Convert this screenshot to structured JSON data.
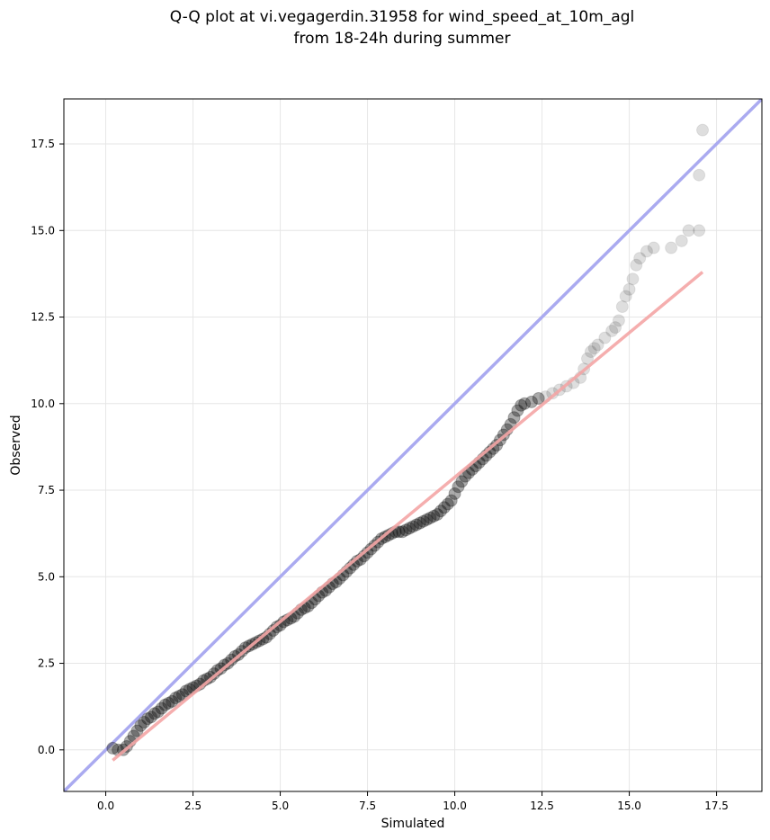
{
  "chart_data": {
    "type": "scatter",
    "title_line1": "Q-Q plot at vi.vegagerdin.31958 for wind_speed_at_10m_agl",
    "title_line2": "from 18-24h during summer",
    "xlabel": "Simulated",
    "ylabel": "Observed",
    "xlim": [
      -1.2,
      18.8
    ],
    "ylim": [
      -1.2,
      18.8
    ],
    "xticks": [
      "0.0",
      "2.5",
      "5.0",
      "7.5",
      "10.0",
      "12.5",
      "15.0",
      "17.5"
    ],
    "yticks": [
      "0.0",
      "2.5",
      "5.0",
      "7.5",
      "10.0",
      "12.5",
      "15.0",
      "17.5"
    ],
    "grid": true,
    "colors": {
      "identity_line": "#aaaaf0",
      "fit_line": "#f4a6a6",
      "points": "#000000",
      "fit_line_dark": "#8b1a1a"
    },
    "series": [
      {
        "kind": "identity-line",
        "x": [
          -1.2,
          18.8
        ],
        "y": [
          -1.2,
          18.8
        ]
      },
      {
        "kind": "fit-line",
        "x": [
          0.2,
          17.1
        ],
        "y": [
          -0.3,
          13.8
        ]
      },
      {
        "kind": "quantile-points",
        "points": [
          [
            0.2,
            0.05
          ],
          [
            0.35,
            0.0
          ],
          [
            0.5,
            0.0
          ],
          [
            0.6,
            0.1
          ],
          [
            0.7,
            0.25
          ],
          [
            0.8,
            0.4
          ],
          [
            0.9,
            0.55
          ],
          [
            1.0,
            0.7
          ],
          [
            1.1,
            0.8
          ],
          [
            1.2,
            0.9
          ],
          [
            1.3,
            0.95
          ],
          [
            1.4,
            1.05
          ],
          [
            1.5,
            1.1
          ],
          [
            1.6,
            1.2
          ],
          [
            1.7,
            1.3
          ],
          [
            1.8,
            1.35
          ],
          [
            1.9,
            1.4
          ],
          [
            2.0,
            1.5
          ],
          [
            2.1,
            1.55
          ],
          [
            2.2,
            1.6
          ],
          [
            2.3,
            1.7
          ],
          [
            2.4,
            1.75
          ],
          [
            2.5,
            1.8
          ],
          [
            2.6,
            1.85
          ],
          [
            2.7,
            1.9
          ],
          [
            2.8,
            2.0
          ],
          [
            2.9,
            2.05
          ],
          [
            3.0,
            2.1
          ],
          [
            3.1,
            2.2
          ],
          [
            3.2,
            2.3
          ],
          [
            3.3,
            2.35
          ],
          [
            3.4,
            2.45
          ],
          [
            3.5,
            2.5
          ],
          [
            3.6,
            2.6
          ],
          [
            3.7,
            2.7
          ],
          [
            3.8,
            2.75
          ],
          [
            3.9,
            2.85
          ],
          [
            4.0,
            2.95
          ],
          [
            4.1,
            3.0
          ],
          [
            4.2,
            3.05
          ],
          [
            4.3,
            3.1
          ],
          [
            4.4,
            3.15
          ],
          [
            4.5,
            3.2
          ],
          [
            4.6,
            3.25
          ],
          [
            4.7,
            3.35
          ],
          [
            4.8,
            3.45
          ],
          [
            4.9,
            3.55
          ],
          [
            5.0,
            3.6
          ],
          [
            5.1,
            3.7
          ],
          [
            5.2,
            3.75
          ],
          [
            5.3,
            3.8
          ],
          [
            5.4,
            3.85
          ],
          [
            5.5,
            3.95
          ],
          [
            5.6,
            4.05
          ],
          [
            5.7,
            4.1
          ],
          [
            5.8,
            4.15
          ],
          [
            5.9,
            4.25
          ],
          [
            6.0,
            4.35
          ],
          [
            6.1,
            4.45
          ],
          [
            6.2,
            4.55
          ],
          [
            6.3,
            4.6
          ],
          [
            6.4,
            4.7
          ],
          [
            6.5,
            4.8
          ],
          [
            6.6,
            4.85
          ],
          [
            6.7,
            4.95
          ],
          [
            6.8,
            5.05
          ],
          [
            6.9,
            5.15
          ],
          [
            7.0,
            5.25
          ],
          [
            7.1,
            5.35
          ],
          [
            7.2,
            5.45
          ],
          [
            7.3,
            5.5
          ],
          [
            7.4,
            5.6
          ],
          [
            7.5,
            5.7
          ],
          [
            7.6,
            5.8
          ],
          [
            7.7,
            5.9
          ],
          [
            7.8,
            6.0
          ],
          [
            7.9,
            6.1
          ],
          [
            8.0,
            6.15
          ],
          [
            8.1,
            6.2
          ],
          [
            8.2,
            6.25
          ],
          [
            8.3,
            6.3
          ],
          [
            8.4,
            6.3
          ],
          [
            8.5,
            6.3
          ],
          [
            8.6,
            6.35
          ],
          [
            8.7,
            6.4
          ],
          [
            8.8,
            6.45
          ],
          [
            8.9,
            6.5
          ],
          [
            9.0,
            6.55
          ],
          [
            9.1,
            6.6
          ],
          [
            9.2,
            6.65
          ],
          [
            9.3,
            6.7
          ],
          [
            9.4,
            6.75
          ],
          [
            9.5,
            6.8
          ],
          [
            9.6,
            6.9
          ],
          [
            9.7,
            7.0
          ],
          [
            9.8,
            7.1
          ],
          [
            9.9,
            7.2
          ],
          [
            10.0,
            7.4
          ],
          [
            10.1,
            7.6
          ],
          [
            10.2,
            7.75
          ],
          [
            10.3,
            7.9
          ],
          [
            10.4,
            8.0
          ],
          [
            10.5,
            8.1
          ],
          [
            10.6,
            8.2
          ],
          [
            10.7,
            8.3
          ],
          [
            10.8,
            8.4
          ],
          [
            10.9,
            8.5
          ],
          [
            11.0,
            8.6
          ],
          [
            11.1,
            8.7
          ],
          [
            11.2,
            8.8
          ],
          [
            11.3,
            8.95
          ],
          [
            11.4,
            9.1
          ],
          [
            11.5,
            9.25
          ],
          [
            11.6,
            9.4
          ],
          [
            11.7,
            9.6
          ],
          [
            11.8,
            9.8
          ],
          [
            11.9,
            9.95
          ],
          [
            12.0,
            10.0
          ],
          [
            12.2,
            10.05
          ],
          [
            12.4,
            10.15
          ],
          [
            12.6,
            10.2
          ],
          [
            12.8,
            10.3
          ],
          [
            13.0,
            10.4
          ],
          [
            13.2,
            10.5
          ],
          [
            13.4,
            10.6
          ],
          [
            13.6,
            10.75
          ],
          [
            13.7,
            11.0
          ],
          [
            13.8,
            11.3
          ],
          [
            13.9,
            11.5
          ],
          [
            14.0,
            11.6
          ],
          [
            14.1,
            11.7
          ],
          [
            14.3,
            11.9
          ],
          [
            14.5,
            12.1
          ],
          [
            14.6,
            12.2
          ],
          [
            14.7,
            12.4
          ],
          [
            14.8,
            12.8
          ],
          [
            14.9,
            13.1
          ],
          [
            15.0,
            13.3
          ],
          [
            15.1,
            13.6
          ],
          [
            15.2,
            14.0
          ],
          [
            15.3,
            14.2
          ],
          [
            15.5,
            14.4
          ],
          [
            15.7,
            14.5
          ],
          [
            16.2,
            14.5
          ],
          [
            16.5,
            14.7
          ],
          [
            16.7,
            15.0
          ],
          [
            17.0,
            15.0
          ],
          [
            17.0,
            16.6
          ],
          [
            17.1,
            17.9
          ]
        ]
      }
    ]
  }
}
